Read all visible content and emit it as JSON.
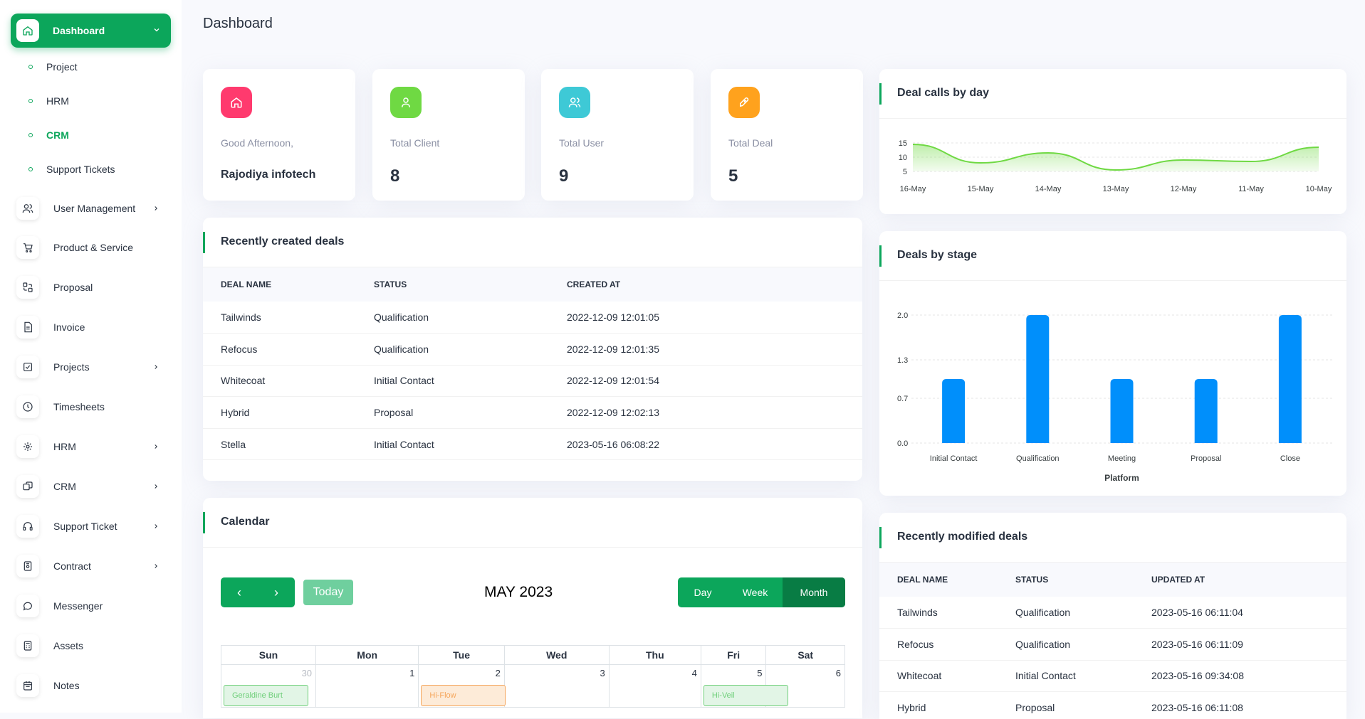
{
  "page_title": "Dashboard",
  "sidebar": {
    "active": {
      "label": "Dashboard",
      "icon": "home-icon"
    },
    "submenu": [
      {
        "label": "Project",
        "active": false
      },
      {
        "label": "HRM",
        "active": false
      },
      {
        "label": "CRM",
        "active": true
      },
      {
        "label": "Support Tickets",
        "active": false
      }
    ],
    "items": [
      {
        "label": "User Management",
        "icon": "users-icon",
        "has_children": true
      },
      {
        "label": "Product & Service",
        "icon": "cart-icon",
        "has_children": false
      },
      {
        "label": "Proposal",
        "icon": "proposal-icon",
        "has_children": false
      },
      {
        "label": "Invoice",
        "icon": "invoice-icon",
        "has_children": false
      },
      {
        "label": "Projects",
        "icon": "checklist-icon",
        "has_children": true
      },
      {
        "label": "Timesheets",
        "icon": "clock-icon",
        "has_children": false
      },
      {
        "label": "HRM",
        "icon": "hrm-icon",
        "has_children": true
      },
      {
        "label": "CRM",
        "icon": "crm-icon",
        "has_children": true
      },
      {
        "label": "Support Ticket",
        "icon": "headset-icon",
        "has_children": true
      },
      {
        "label": "Contract",
        "icon": "contract-icon",
        "has_children": true
      },
      {
        "label": "Messenger",
        "icon": "chat-icon",
        "has_children": false
      },
      {
        "label": "Assets",
        "icon": "calculator-icon",
        "has_children": false
      },
      {
        "label": "Notes",
        "icon": "calendar-icon",
        "has_children": false
      }
    ]
  },
  "stats": [
    {
      "label": "Good Afternoon,",
      "value": "Rajodiya infotech",
      "icon": "home-icon",
      "color": "#ff3a6e"
    },
    {
      "label": "Total Client",
      "value": "8",
      "icon": "user-icon",
      "color": "#6fd943"
    },
    {
      "label": "Total User",
      "value": "9",
      "icon": "users-icon",
      "color": "#3ec9d6"
    },
    {
      "label": "Total Deal",
      "value": "5",
      "icon": "rocket-icon",
      "color": "#ffa21d"
    }
  ],
  "recent_deals": {
    "title": "Recently created deals",
    "columns": [
      "DEAL NAME",
      "STATUS",
      "CREATED AT"
    ],
    "rows": [
      [
        "Tailwinds",
        "Qualification",
        "2022-12-09 12:01:05"
      ],
      [
        "Refocus",
        "Qualification",
        "2022-12-09 12:01:35"
      ],
      [
        "Whitecoat",
        "Initial Contact",
        "2022-12-09 12:01:54"
      ],
      [
        "Hybrid",
        "Proposal",
        "2022-12-09 12:02:13"
      ],
      [
        "Stella",
        "Initial Contact",
        "2023-05-16 06:08:22"
      ]
    ]
  },
  "calendar": {
    "title": "Calendar",
    "today_label": "Today",
    "month_label": "MAY 2023",
    "views": [
      "Day",
      "Week",
      "Month"
    ],
    "selected_view": "Month",
    "weekdays": [
      "Sun",
      "Mon",
      "Tue",
      "Wed",
      "Thu",
      "Fri",
      "Sat"
    ],
    "first_week": [
      "30",
      "1",
      "2",
      "3",
      "4",
      "5",
      "6"
    ],
    "events": [
      {
        "day_index": 0,
        "label": "Geraldine Burt",
        "color": "green"
      },
      {
        "day_index": 2,
        "label": "Hi-Flow",
        "color": "orange"
      },
      {
        "day_index": 5,
        "label": "Hi-Veil",
        "color": "green"
      }
    ]
  },
  "recent_modified": {
    "title": "Recently modified deals",
    "columns": [
      "DEAL NAME",
      "STATUS",
      "UPDATED AT"
    ],
    "rows": [
      [
        "Tailwinds",
        "Qualification",
        "2023-05-16 06:11:04"
      ],
      [
        "Refocus",
        "Qualification",
        "2023-05-16 06:11:09"
      ],
      [
        "Whitecoat",
        "Initial Contact",
        "2023-05-16 09:34:08"
      ],
      [
        "Hybrid",
        "Proposal",
        "2023-05-16 06:11:08"
      ]
    ]
  },
  "chart_data": [
    {
      "type": "area",
      "title": "Deal calls by day",
      "x": [
        "16-May",
        "15-May",
        "14-May",
        "13-May",
        "12-May",
        "11-May",
        "10-May"
      ],
      "y_ticks": [
        "15",
        "10",
        "5"
      ],
      "ylim": [
        5,
        15
      ],
      "series": [
        {
          "values": [
            14.5,
            8,
            11.5,
            5.5,
            9,
            8.5,
            13.5
          ]
        }
      ],
      "color": "#6fd943"
    },
    {
      "type": "bar",
      "title": "Deals by stage",
      "categories": [
        "Initial Contact",
        "Qualification",
        "Meeting",
        "Proposal",
        "Close"
      ],
      "values": [
        1,
        2,
        1,
        1,
        2
      ],
      "y_ticks": [
        "2.0",
        "1.3",
        "0.7",
        "0.0"
      ],
      "ylim": [
        0,
        2
      ],
      "xlabel": "Platform",
      "color": "#008ffb"
    }
  ]
}
